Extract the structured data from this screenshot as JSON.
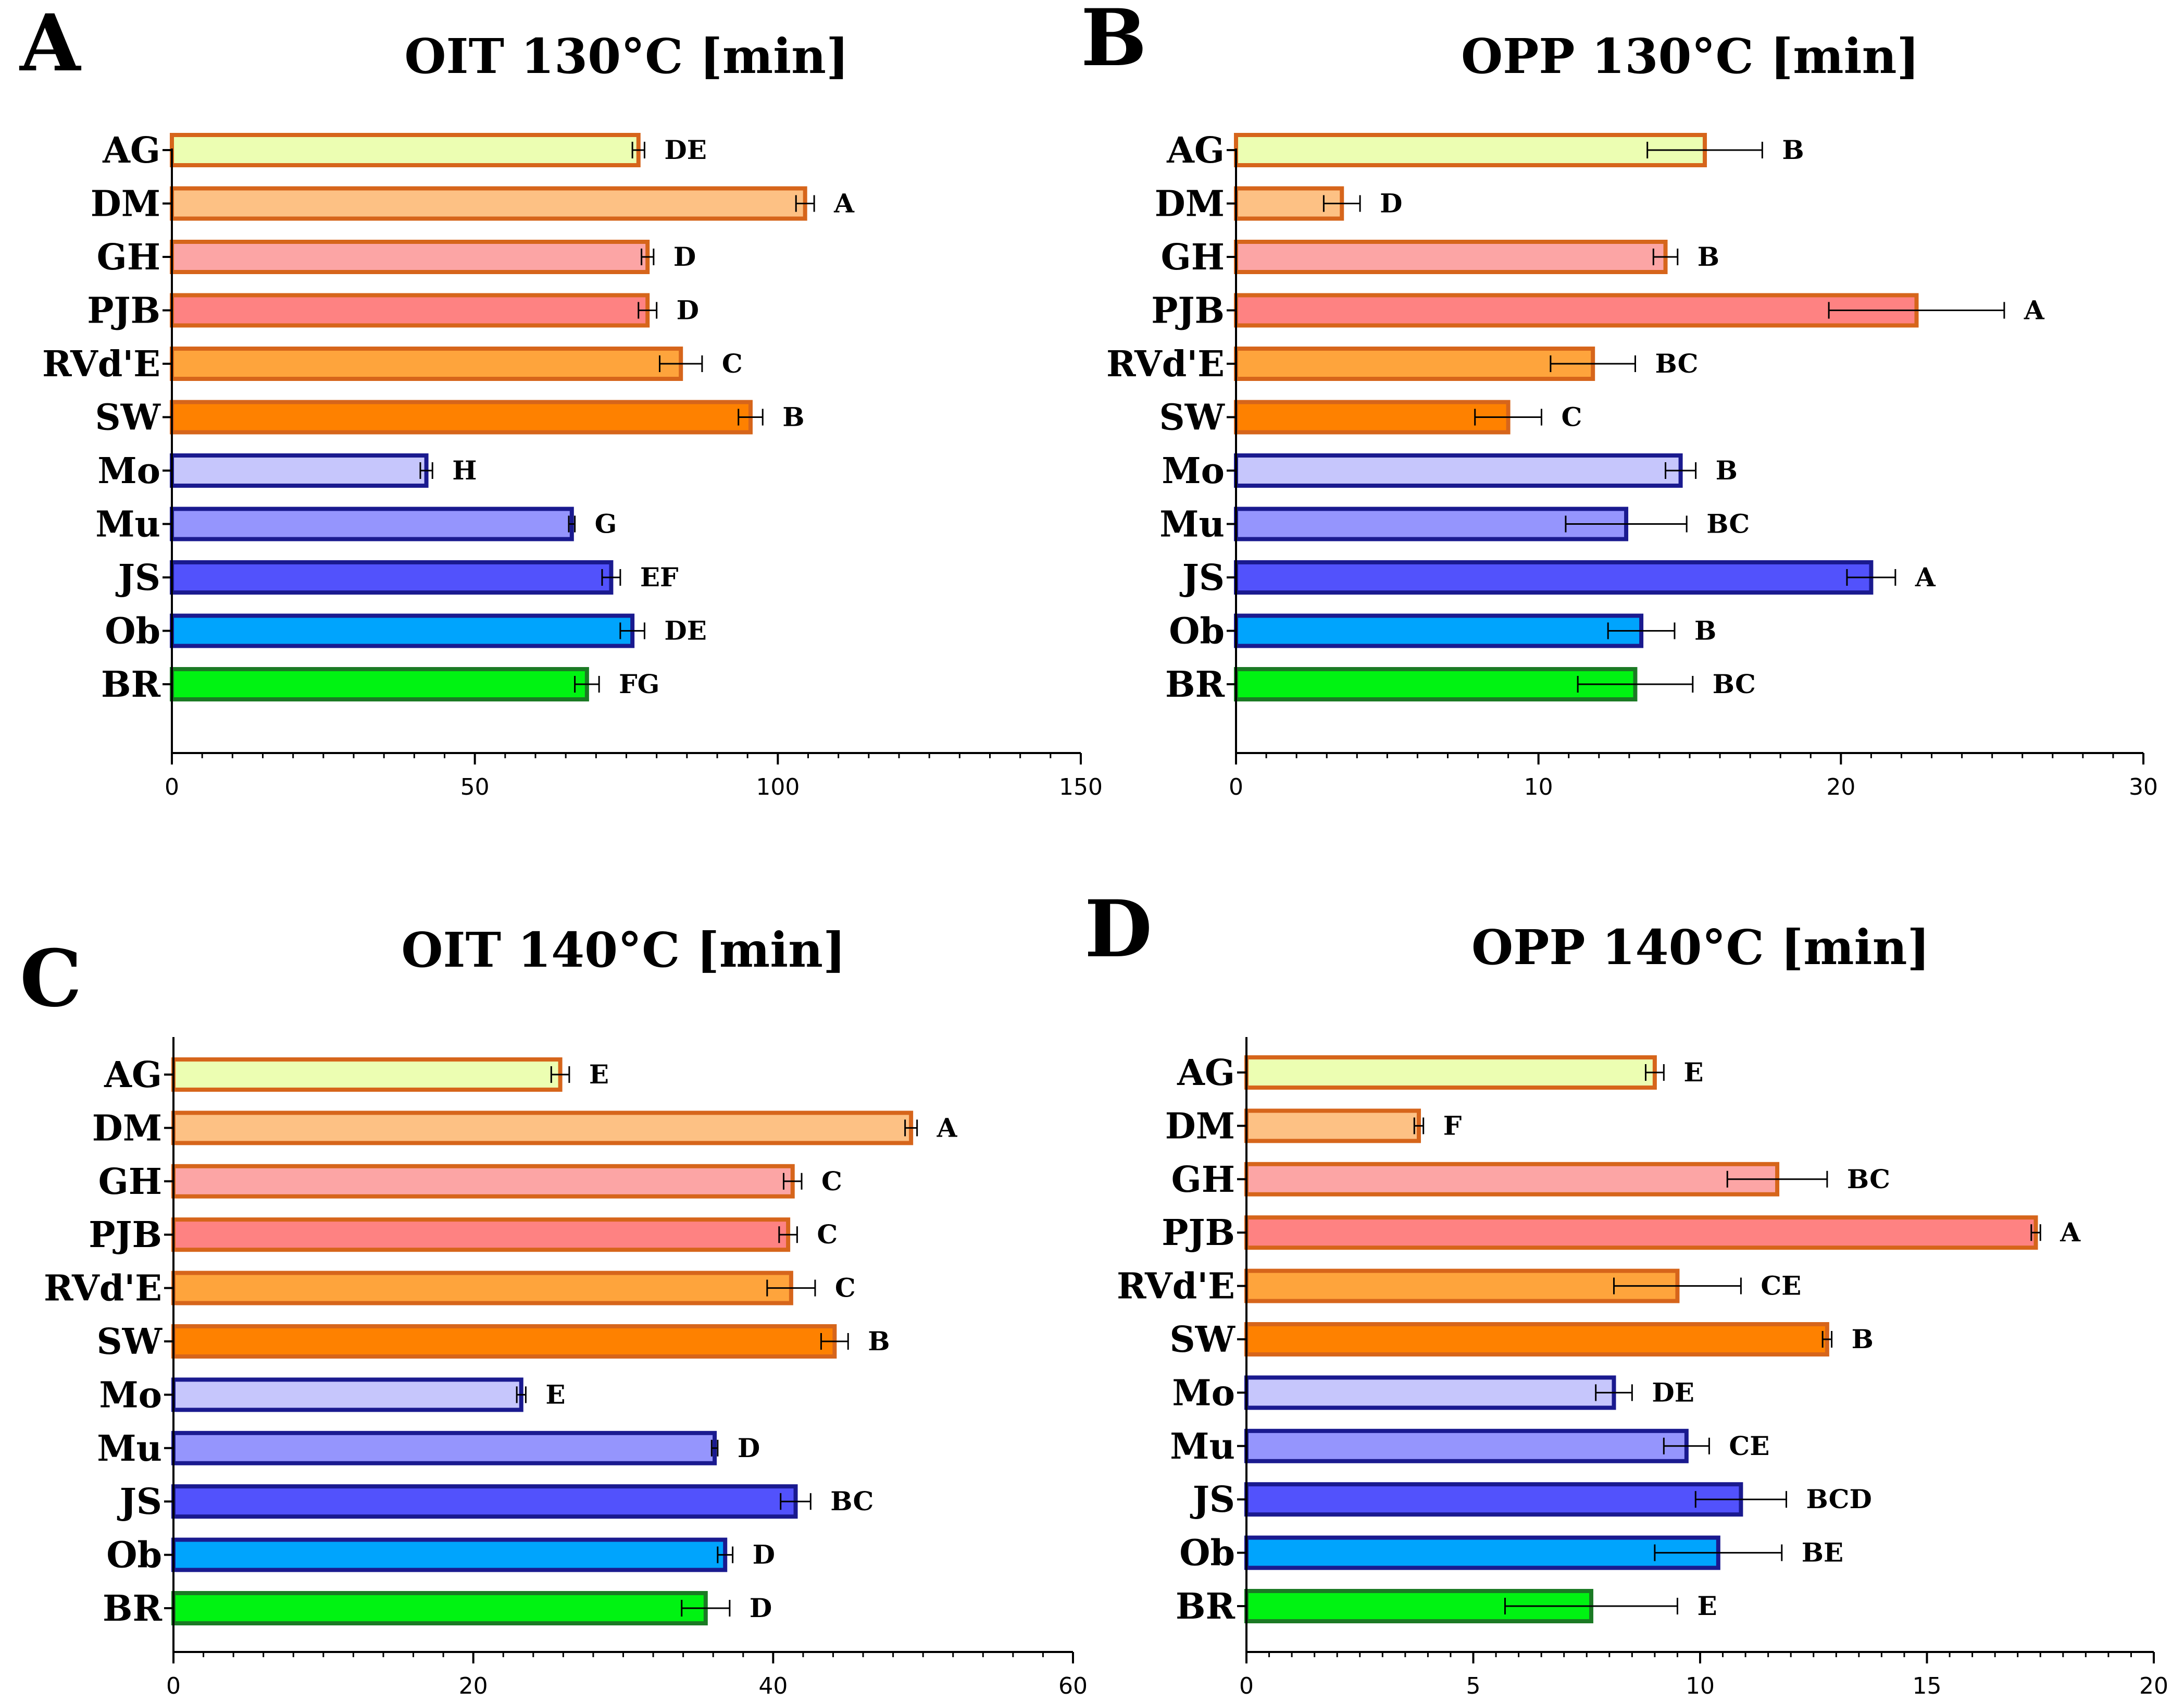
{
  "chart_data": [
    {
      "panel": "A",
      "type": "bar",
      "orientation": "horizontal",
      "title": "OIT 130°C [min]",
      "xlim": [
        0,
        150
      ],
      "xticks": [
        0,
        50,
        100,
        150
      ],
      "xtick_labels": [
        "0",
        "50",
        "100",
        "150"
      ],
      "categories": [
        "AG",
        "DM",
        "GH",
        "PJB",
        "RVd'E",
        "SW",
        "Mo",
        "Mu",
        "JS",
        "Ob",
        "BR"
      ],
      "values": [
        77,
        104.5,
        78.5,
        78.5,
        84,
        95.5,
        42,
        66,
        72.5,
        76,
        68.5
      ],
      "errors": [
        1,
        1.5,
        1,
        1.5,
        3.5,
        2,
        1,
        0.5,
        1.5,
        2,
        2
      ],
      "significance": [
        "DE",
        "A",
        "D",
        "D",
        "C",
        "B",
        "H",
        "G",
        "EF",
        "DE",
        "FG"
      ]
    },
    {
      "panel": "B",
      "type": "bar",
      "orientation": "horizontal",
      "title": "OPP 130°C [min]",
      "xlim": [
        0,
        30
      ],
      "xticks": [
        0,
        10,
        20,
        30
      ],
      "xtick_labels": [
        "0",
        "10",
        "20",
        "30"
      ],
      "categories": [
        "AG",
        "DM",
        "GH",
        "PJB",
        "RVd'E",
        "SW",
        "Mo",
        "Mu",
        "JS",
        "Ob",
        "BR"
      ],
      "values": [
        15.5,
        3.5,
        14.2,
        22.5,
        11.8,
        9,
        14.7,
        12.9,
        21,
        13.4,
        13.2
      ],
      "errors": [
        1.9,
        0.6,
        0.4,
        2.9,
        1.4,
        1.1,
        0.5,
        2,
        0.8,
        1.1,
        1.9
      ],
      "significance": [
        "B",
        "D",
        "B",
        "A",
        "BC",
        "C",
        "B",
        "BC",
        "A",
        "B",
        "BC"
      ]
    },
    {
      "panel": "C",
      "type": "bar",
      "orientation": "horizontal",
      "title": "OIT 140°C [min]",
      "xlim": [
        0,
        60
      ],
      "xticks": [
        0,
        20,
        40,
        60
      ],
      "xtick_labels": [
        "0",
        "20",
        "40",
        "60"
      ],
      "categories": [
        "AG",
        "DM",
        "GH",
        "PJB",
        "RVd'E",
        "SW",
        "Mo",
        "Mu",
        "JS",
        "Ob",
        "BR"
      ],
      "values": [
        25.8,
        49.2,
        41.3,
        41,
        41.2,
        44.1,
        23.2,
        36.1,
        41.5,
        36.8,
        35.5
      ],
      "errors": [
        0.6,
        0.4,
        0.6,
        0.6,
        1.6,
        0.9,
        0.3,
        0.2,
        1,
        0.5,
        1.6
      ],
      "significance": [
        "E",
        "A",
        "C",
        "C",
        "C",
        "B",
        "E",
        "D",
        "BC",
        "D",
        "D"
      ]
    },
    {
      "panel": "D",
      "type": "bar",
      "orientation": "horizontal",
      "title": "OPP 140°C [min]",
      "xlim": [
        0,
        20
      ],
      "xticks": [
        0,
        5,
        10,
        15,
        20
      ],
      "xtick_labels": [
        "0",
        "5",
        "10",
        "15",
        "20"
      ],
      "categories": [
        "AG",
        "DM",
        "GH",
        "PJB",
        "RVd'E",
        "SW",
        "Mo",
        "Mu",
        "JS",
        "Ob",
        "BR"
      ],
      "values": [
        9,
        3.8,
        11.7,
        17.4,
        9.5,
        12.8,
        8.1,
        9.7,
        10.9,
        10.4,
        7.6
      ],
      "errors": [
        0.2,
        0.1,
        1.1,
        0.1,
        1.4,
        0.1,
        0.4,
        0.5,
        1,
        1.4,
        1.9
      ],
      "significance": [
        "E",
        "F",
        "BC",
        "A",
        "CE",
        "B",
        "DE",
        "CE",
        "BCD",
        "BE",
        "E"
      ]
    }
  ],
  "colors": {
    "fills": [
      "#ecfeb2",
      "#fdc184",
      "#fca5a5",
      "#fe8282",
      "#fea43c",
      "#fe8100",
      "#c6c6fc",
      "#9595fd",
      "#5252fc",
      "#00a4fd",
      "#00f312"
    ],
    "strokes": [
      "#d6651b",
      "#d6651b",
      "#d6651b",
      "#d6651b",
      "#d6651b",
      "#d6651b",
      "#1a1a8f",
      "#1a1a8f",
      "#1a1a8f",
      "#1a1a8f",
      "#1b7a24"
    ]
  }
}
